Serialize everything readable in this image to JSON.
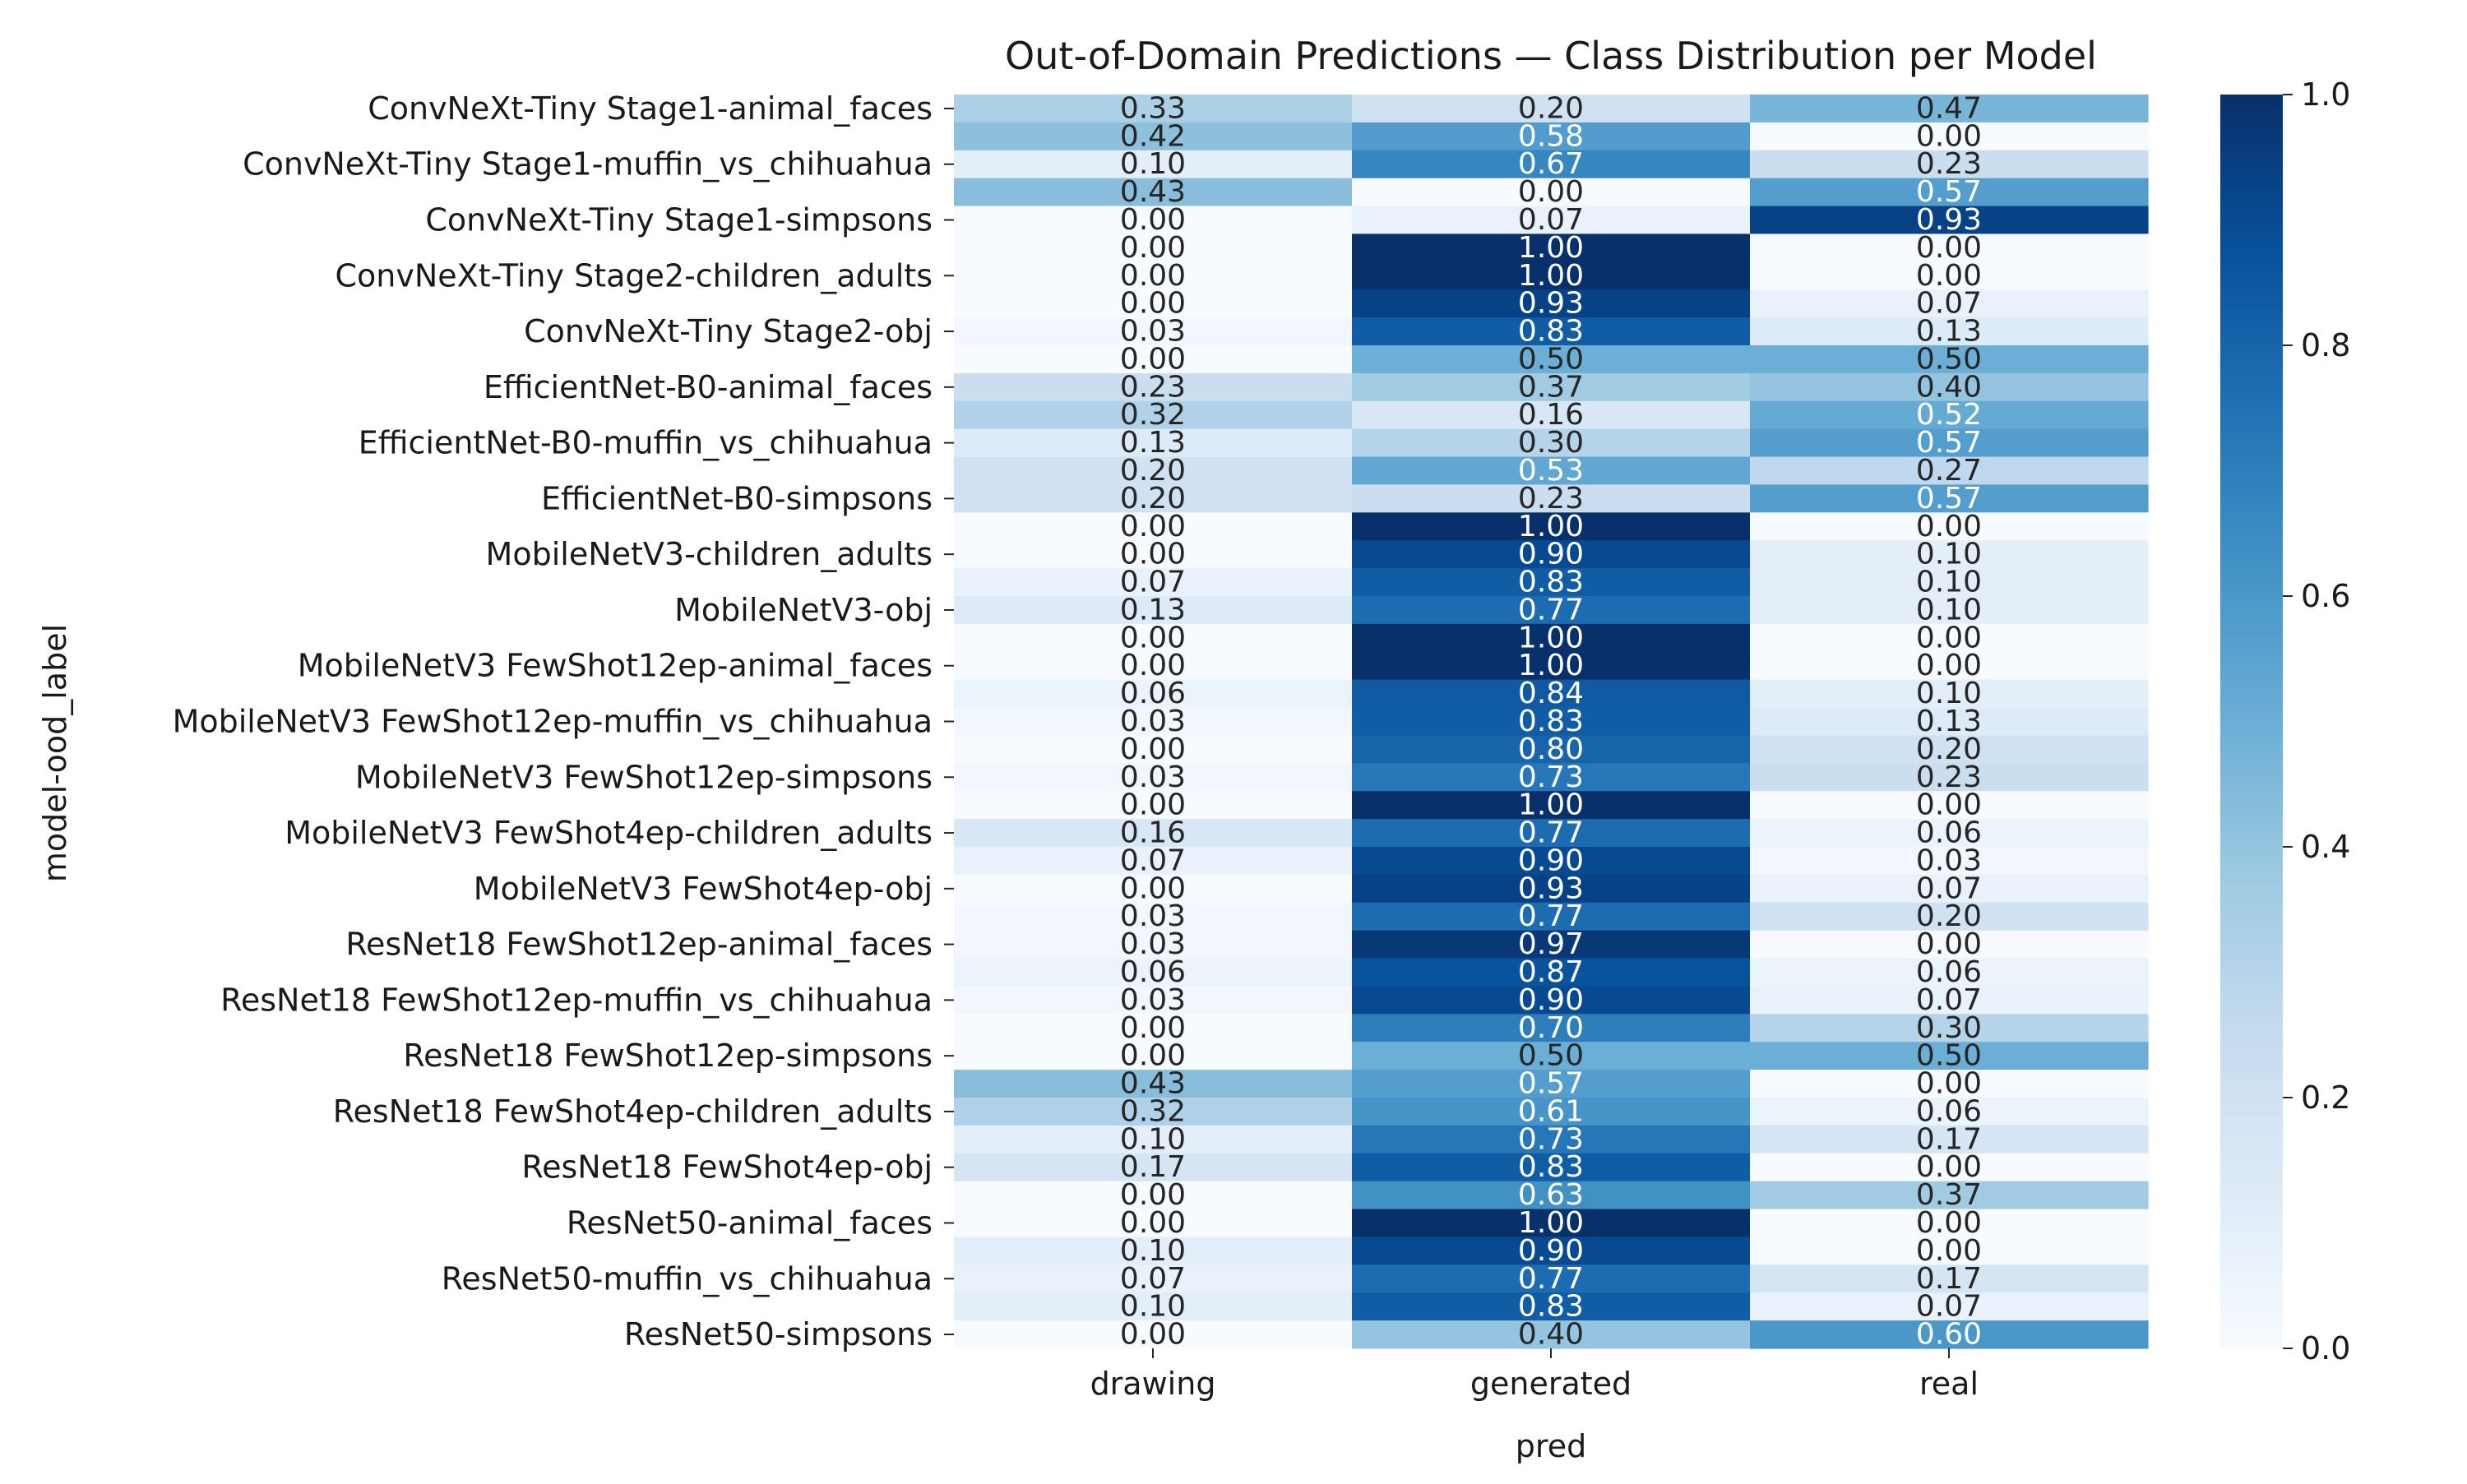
{
  "chart_data": {
    "type": "heatmap",
    "title": "Out-of-Domain Predictions — Class Distribution per Model",
    "xlabel": "pred",
    "ylabel": "model-ood_label",
    "x_categories": [
      "drawing",
      "generated",
      "real"
    ],
    "y_tick_labels": [
      "ConvNeXt-Tiny Stage1-animal_faces",
      "ConvNeXt-Tiny Stage1-muffin_vs_chihuahua",
      "ConvNeXt-Tiny Stage1-simpsons",
      "ConvNeXt-Tiny Stage2-children_adults",
      "ConvNeXt-Tiny Stage2-obj",
      "EfficientNet-B0-animal_faces",
      "EfficientNet-B0-muffin_vs_chihuahua",
      "EfficientNet-B0-simpsons",
      "MobileNetV3-children_adults",
      "MobileNetV3-obj",
      "MobileNetV3 FewShot12ep-animal_faces",
      "MobileNetV3 FewShot12ep-muffin_vs_chihuahua",
      "MobileNetV3 FewShot12ep-simpsons",
      "MobileNetV3 FewShot4ep-children_adults",
      "MobileNetV3 FewShot4ep-obj",
      "ResNet18 FewShot12ep-animal_faces",
      "ResNet18 FewShot12ep-muffin_vs_chihuahua",
      "ResNet18 FewShot12ep-simpsons",
      "ResNet18 FewShot4ep-children_adults",
      "ResNet18 FewShot4ep-obj",
      "ResNet50-animal_faces",
      "ResNet50-muffin_vs_chihuahua",
      "ResNet50-simpsons"
    ],
    "values": [
      [
        0.33,
        0.2,
        0.47
      ],
      [
        0.42,
        0.58,
        0.0
      ],
      [
        0.1,
        0.67,
        0.23
      ],
      [
        0.43,
        0.0,
        0.57
      ],
      [
        0.0,
        0.07,
        0.93
      ],
      [
        0.0,
        1.0,
        0.0
      ],
      [
        0.0,
        1.0,
        0.0
      ],
      [
        0.0,
        0.93,
        0.07
      ],
      [
        0.03,
        0.83,
        0.13
      ],
      [
        0.0,
        0.5,
        0.5
      ],
      [
        0.23,
        0.37,
        0.4
      ],
      [
        0.32,
        0.16,
        0.52
      ],
      [
        0.13,
        0.3,
        0.57
      ],
      [
        0.2,
        0.53,
        0.27
      ],
      [
        0.2,
        0.23,
        0.57
      ],
      [
        0.0,
        1.0,
        0.0
      ],
      [
        0.0,
        0.9,
        0.1
      ],
      [
        0.07,
        0.83,
        0.1
      ],
      [
        0.13,
        0.77,
        0.1
      ],
      [
        0.0,
        1.0,
        0.0
      ],
      [
        0.0,
        1.0,
        0.0
      ],
      [
        0.06,
        0.84,
        0.1
      ],
      [
        0.03,
        0.83,
        0.13
      ],
      [
        0.0,
        0.8,
        0.2
      ],
      [
        0.03,
        0.73,
        0.23
      ],
      [
        0.0,
        1.0,
        0.0
      ],
      [
        0.16,
        0.77,
        0.06
      ],
      [
        0.07,
        0.9,
        0.03
      ],
      [
        0.0,
        0.93,
        0.07
      ],
      [
        0.03,
        0.77,
        0.2
      ],
      [
        0.03,
        0.97,
        0.0
      ],
      [
        0.06,
        0.87,
        0.06
      ],
      [
        0.03,
        0.9,
        0.07
      ],
      [
        0.0,
        0.7,
        0.3
      ],
      [
        0.0,
        0.5,
        0.5
      ],
      [
        0.43,
        0.57,
        0.0
      ],
      [
        0.32,
        0.61,
        0.06
      ],
      [
        0.1,
        0.73,
        0.17
      ],
      [
        0.17,
        0.83,
        0.0
      ],
      [
        0.0,
        0.63,
        0.37
      ],
      [
        0.0,
        1.0,
        0.0
      ],
      [
        0.1,
        0.9,
        0.0
      ],
      [
        0.07,
        0.77,
        0.17
      ],
      [
        0.1,
        0.83,
        0.07
      ],
      [
        0.0,
        0.4,
        0.6
      ]
    ],
    "colormap": "Blues",
    "color_stops": [
      "#f7fbff",
      "#deebf7",
      "#c6dbef",
      "#9ecae1",
      "#6baed6",
      "#4292c6",
      "#2171b5",
      "#08519c",
      "#08306b"
    ],
    "vmin": 0.0,
    "vmax": 1.0,
    "colorbar_ticks": [
      "0.0",
      "0.2",
      "0.4",
      "0.6",
      "0.8",
      "1.0"
    ],
    "grid": false
  }
}
